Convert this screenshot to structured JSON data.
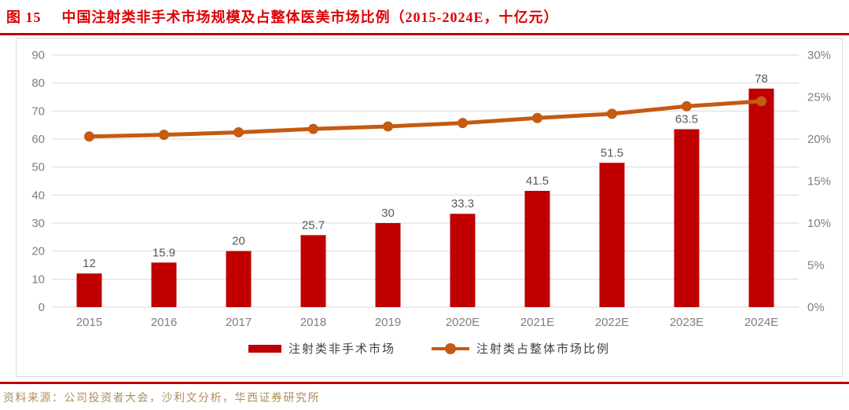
{
  "header": {
    "tag": "图 15",
    "title": "中国注射类非手术市场规模及占整体医美市场比例（2015-2024E，十亿元）"
  },
  "source": "资料来源：公司投资者大会，沙利文分析，华西证券研究所",
  "colors": {
    "title_red": "#DE0000",
    "rule_red": "#C00000",
    "bar_red": "#C00000",
    "line_orange": "#C55A11",
    "grid": "#D9D9D9",
    "axis_text": "#7F7F7F",
    "data_label": "#595959",
    "source_text": "#B08D5A"
  },
  "chart_data": {
    "type": "bar+line",
    "title": "中国注射类非手术市场规模及占整体医美市场比例（2015-2024E，十亿元）",
    "categories": [
      "2015",
      "2016",
      "2017",
      "2018",
      "2019",
      "2020E",
      "2021E",
      "2022E",
      "2023E",
      "2024E"
    ],
    "series": [
      {
        "name": "注射类非手术市场",
        "type": "bar",
        "axis": "left",
        "color": "#C00000",
        "values": [
          12,
          15.9,
          20,
          25.7,
          30,
          33.3,
          41.5,
          51.5,
          63.5,
          78
        ],
        "labels": [
          "12",
          "15.9",
          "20",
          "25.7",
          "30",
          "33.3",
          "41.5",
          "51.5",
          "63.5",
          "78"
        ]
      },
      {
        "name": "注射类占整体市场比例",
        "type": "line",
        "axis": "right",
        "color": "#C55A11",
        "values": [
          20.3,
          20.5,
          20.8,
          21.2,
          21.5,
          21.9,
          22.5,
          23.0,
          23.9,
          24.5
        ]
      }
    ],
    "left_axis": {
      "min": 0,
      "max": 90,
      "step": 10,
      "ticks": [
        "0",
        "10",
        "20",
        "30",
        "40",
        "50",
        "60",
        "70",
        "80",
        "90"
      ]
    },
    "right_axis": {
      "min": 0,
      "max": 30,
      "step": 5,
      "ticks": [
        "0%",
        "5%",
        "10%",
        "15%",
        "20%",
        "25%",
        "30%"
      ]
    },
    "grid": "horizontal",
    "legend_position": "bottom"
  }
}
